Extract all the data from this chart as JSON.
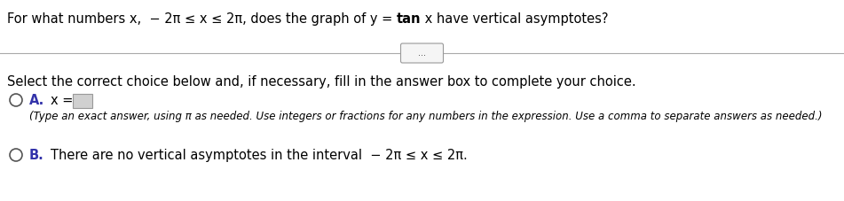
{
  "title_prefix": "For what numbers x,  − 2π ≤ x ≤ 2π, does the graph of y = ",
  "title_tan": "tan",
  "title_suffix": " x have vertical asymptotes?",
  "dots_text": "...",
  "select_text": "Select the correct choice below and, if necessary, fill in the answer box to complete your choice.",
  "option_a_label": "A.",
  "option_a_eq": "x =",
  "option_a_subtext": "(Type an exact answer, using π as needed. Use integers or fractions for any numbers in the expression. Use a comma to separate answers as needed.)",
  "option_b_label": "B.",
  "option_b_text": "There are no vertical asymptotes in the interval  − 2π ≤ x ≤ 2π.",
  "bg_color": "#ffffff",
  "text_color": "#000000",
  "blue_color": "#3333aa",
  "gray_line_color": "#aaaaaa",
  "btn_face_color": "#f5f5f5",
  "btn_edge_color": "#999999",
  "box_face_color": "#d0d0d0",
  "box_edge_color": "#999999",
  "circle_edge_color": "#555555",
  "font_size_title": 10.5,
  "font_size_main": 10.5,
  "font_size_sub": 8.5,
  "font_size_dots": 7.0
}
